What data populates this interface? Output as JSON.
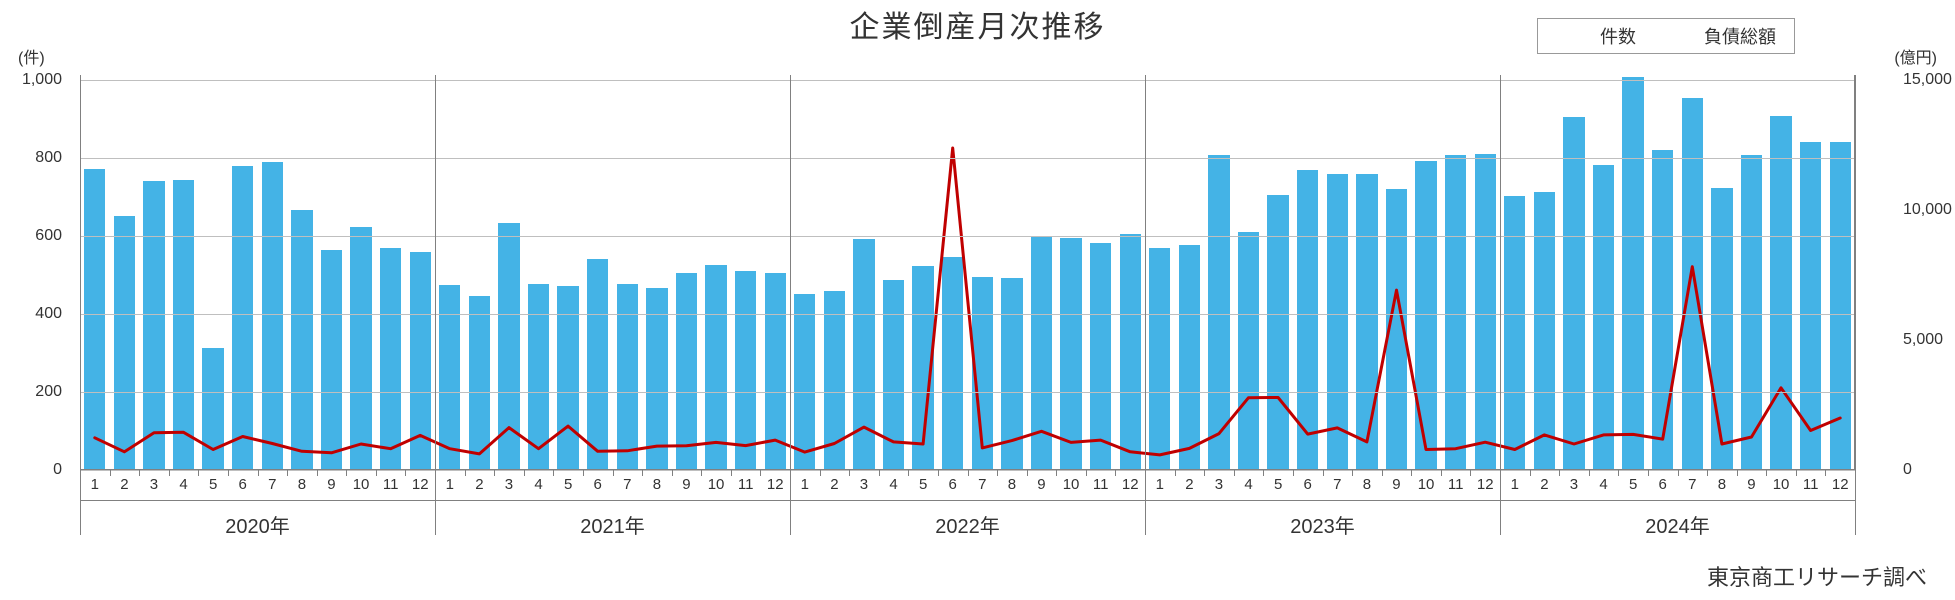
{
  "chart": {
    "type": "bar+line",
    "title": "企業倒産月次推移",
    "source_note": "東京商工リサーチ調べ",
    "background_color": "#ffffff",
    "grid_color": "#bfbfbf",
    "axis_color": "#808080",
    "text_color": "#333333",
    "title_fontsize": 30,
    "label_fontsize": 16,
    "month_fontsize": 15,
    "year_fontsize": 20,
    "source_fontsize": 22,
    "y_left": {
      "unit": "(件)",
      "min": 0,
      "max": 1000,
      "ticks": [
        0,
        200,
        400,
        600,
        800,
        1000
      ],
      "tick_labels": [
        "0",
        "200",
        "400",
        "600",
        "800",
        "1,000"
      ]
    },
    "y_right": {
      "unit": "(億円)",
      "min": 0,
      "max": 15000,
      "ticks": [
        0,
        5000,
        10000,
        15000
      ],
      "tick_labels": [
        "0",
        "5,000",
        "10,000",
        "15,000"
      ]
    },
    "years": [
      "2020年",
      "2021年",
      "2022年",
      "2023年",
      "2024年"
    ],
    "months_per_year": 12,
    "month_labels": [
      "1",
      "2",
      "3",
      "4",
      "5",
      "6",
      "7",
      "8",
      "9",
      "10",
      "11",
      "12"
    ],
    "bar": {
      "label": "件数",
      "color": "#44b3e6",
      "width_ratio": 0.72,
      "values": [
        773,
        651,
        740,
        743,
        314,
        780,
        789,
        667,
        565,
        624,
        569,
        558,
        474,
        446,
        634,
        477,
        472,
        541,
        476,
        466,
        505,
        525,
        510,
        504,
        452,
        459,
        593,
        486,
        524,
        546,
        494,
        492,
        599,
        596,
        581,
        606,
        570,
        577,
        809,
        610,
        706,
        770,
        758,
        760,
        720,
        793,
        807,
        810,
        703,
        712,
        906,
        783,
        1009,
        820,
        953,
        723,
        807,
        909,
        841,
        842
      ]
    },
    "line": {
      "label": "負債総額",
      "color": "#c00000",
      "width": 3,
      "values": [
        1240,
        700,
        1430,
        1450,
        790,
        1290,
        1020,
        720,
        660,
        1000,
        820,
        1330,
        820,
        620,
        1630,
        820,
        1690,
        720,
        740,
        920,
        930,
        1060,
        940,
        1150,
        690,
        1020,
        1650,
        1080,
        1000,
        12386,
        850,
        1130,
        1490,
        1060,
        1150,
        700,
        580,
        830,
        1400,
        2780,
        2790,
        1380,
        1620,
        1080,
        6920,
        790,
        820,
        1070,
        790,
        1350,
        1000,
        1350,
        1370,
        1190,
        7820,
        1000,
        1270,
        3160,
        1520,
        2000
      ]
    },
    "legend": {
      "border_color": "#999999",
      "items": [
        {
          "label": "件数",
          "type": "bar",
          "color": "#44b3e6"
        },
        {
          "label": "負債総額",
          "type": "line",
          "color": "#c00000"
        }
      ]
    }
  }
}
